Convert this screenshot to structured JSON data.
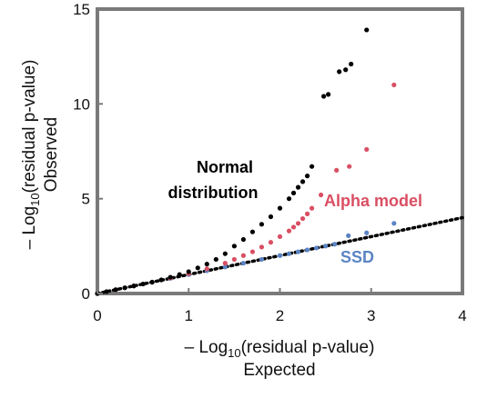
{
  "chart_data": {
    "type": "scatter",
    "title": "",
    "xlabel": {
      "prefix": "– Log",
      "sub": "10",
      "suffix": "(residual p-value)",
      "second_line": "Expected"
    },
    "ylabel": {
      "prefix": "– Log",
      "sub": "10",
      "suffix": "(residual p-value)",
      "second_line": "Observed"
    },
    "xlim": [
      0,
      4
    ],
    "ylim": [
      0,
      15
    ],
    "xticks": [
      "0",
      "1",
      "2",
      "3",
      "4"
    ],
    "yticks": [
      "0",
      "5",
      "10",
      "15"
    ],
    "grid": false,
    "annotations": [
      {
        "text": "Normal",
        "color": "#000000"
      },
      {
        "text": "distribution",
        "color": "#000000"
      },
      {
        "text": "Alpha model",
        "color": "#d94f63"
      },
      {
        "text": "SSD",
        "color": "#5b84c4"
      }
    ],
    "reference_line": {
      "style": "dotted",
      "color": "#000000",
      "x": [
        0,
        4
      ],
      "y": [
        0,
        4
      ]
    },
    "series": [
      {
        "name": "Normal distribution",
        "color": "#000000",
        "x": [
          0.0,
          0.1,
          0.2,
          0.3,
          0.4,
          0.5,
          0.6,
          0.7,
          0.8,
          0.9,
          1.0,
          1.1,
          1.2,
          1.3,
          1.4,
          1.5,
          1.6,
          1.7,
          1.8,
          1.9,
          2.0,
          2.1,
          2.15,
          2.2,
          2.25,
          2.3,
          2.35,
          2.48,
          2.53,
          2.65,
          2.72,
          2.78,
          2.95
        ],
        "y": [
          0.0,
          0.1,
          0.2,
          0.3,
          0.4,
          0.5,
          0.6,
          0.72,
          0.86,
          1.0,
          1.15,
          1.35,
          1.55,
          1.8,
          2.1,
          2.5,
          2.85,
          3.25,
          3.65,
          4.05,
          4.5,
          5.0,
          5.3,
          5.6,
          5.9,
          6.2,
          6.7,
          10.4,
          10.5,
          11.7,
          11.8,
          12.1,
          13.9
        ]
      },
      {
        "name": "Alpha model",
        "color": "#d94f63",
        "x": [
          0.0,
          0.2,
          0.4,
          0.6,
          0.8,
          1.0,
          1.2,
          1.4,
          1.5,
          1.6,
          1.7,
          1.8,
          1.9,
          2.0,
          2.1,
          2.15,
          2.2,
          2.25,
          2.3,
          2.35,
          2.45,
          2.62,
          2.76,
          2.95,
          3.25
        ],
        "y": [
          0.0,
          0.2,
          0.4,
          0.6,
          0.82,
          1.05,
          1.3,
          1.6,
          1.8,
          2.0,
          2.2,
          2.45,
          2.7,
          3.0,
          3.3,
          3.5,
          3.7,
          3.95,
          4.2,
          4.5,
          5.2,
          6.5,
          6.7,
          7.6,
          11.0
        ]
      },
      {
        "name": "SSD",
        "color": "#5b84c4",
        "x": [
          0.0,
          0.2,
          0.4,
          0.6,
          0.8,
          1.0,
          1.2,
          1.4,
          1.6,
          1.8,
          2.0,
          2.1,
          2.2,
          2.3,
          2.4,
          2.5,
          2.6,
          2.75,
          2.95,
          3.25
        ],
        "y": [
          0.0,
          0.2,
          0.4,
          0.6,
          0.8,
          1.0,
          1.2,
          1.4,
          1.6,
          1.8,
          2.0,
          2.1,
          2.2,
          2.3,
          2.4,
          2.5,
          2.6,
          3.05,
          3.2,
          3.7
        ]
      }
    ]
  }
}
